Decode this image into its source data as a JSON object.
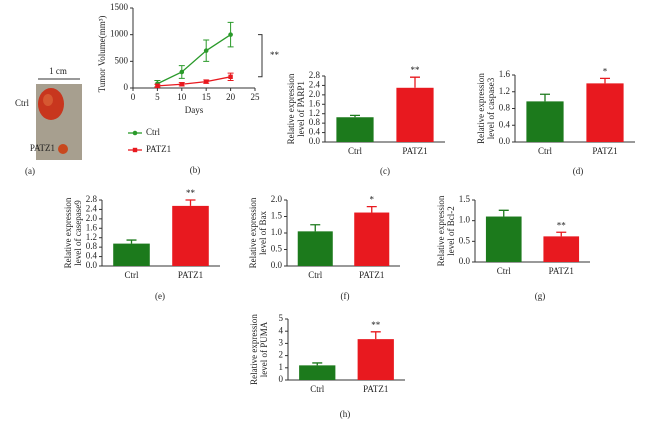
{
  "photo": {
    "scale_label": "1 cm",
    "labels": [
      "Ctrl",
      "PATZ1"
    ],
    "panel": "(a)"
  },
  "chart_data": [
    {
      "type": "line",
      "panel": "(b)",
      "ylabel": "Tumor Volume(mm³)",
      "xlabel": "Days",
      "x": [
        5,
        10,
        15,
        20
      ],
      "xlim": [
        0,
        25
      ],
      "xticks": [
        0,
        5,
        10,
        15,
        20,
        25
      ],
      "ylim": [
        0,
        1500
      ],
      "yticks": [
        0,
        500,
        1000,
        1500
      ],
      "annotation": "**",
      "series": [
        {
          "name": "Ctrl",
          "color": "#2a9a2a",
          "marker": "circle",
          "values": [
            80,
            300,
            700,
            1000
          ],
          "errors": [
            60,
            120,
            200,
            230
          ]
        },
        {
          "name": "PATZ1",
          "color": "#e8191f",
          "marker": "square",
          "values": [
            40,
            70,
            120,
            210
          ],
          "errors": [
            30,
            30,
            30,
            70
          ]
        }
      ]
    },
    {
      "type": "bar",
      "panel": "(c)",
      "ylabel": [
        "Relative expression",
        "level of PARP1"
      ],
      "categories": [
        "Ctrl",
        "PATZ1"
      ],
      "values": [
        1.05,
        2.3
      ],
      "errors": [
        0.08,
        0.45
      ],
      "colors": [
        "#1c7a1c",
        "#e8191f"
      ],
      "value_annotations": [
        null,
        "**"
      ],
      "ylim": [
        0,
        2.8
      ],
      "yticks": [
        {
          "value": 0,
          "label": "0.0"
        },
        0.4,
        0.8,
        1.2,
        1.6,
        {
          "value": 2,
          "label": "2.0"
        },
        2.4,
        2.8
      ]
    },
    {
      "type": "bar",
      "panel": "(d)",
      "ylabel": [
        "Relative expression",
        "level of caspase3"
      ],
      "categories": [
        "Ctrl",
        "PATZ1"
      ],
      "values": [
        0.97,
        1.4
      ],
      "errors": [
        0.17,
        0.12
      ],
      "colors": [
        "#1c7a1c",
        "#e8191f"
      ],
      "value_annotations": [
        null,
        "*"
      ],
      "ylim": [
        0,
        1.6
      ],
      "yticks": [
        {
          "value": 0,
          "label": "0.0"
        },
        0.4,
        0.8,
        1.2,
        1.6
      ]
    },
    {
      "type": "bar",
      "panel": "(e)",
      "ylabel": [
        "Relative expression",
        "level of casepase9"
      ],
      "categories": [
        "Ctrl",
        "PATZ1"
      ],
      "values": [
        0.95,
        2.55
      ],
      "errors": [
        0.15,
        0.25
      ],
      "colors": [
        "#1c7a1c",
        "#e8191f"
      ],
      "value_annotations": [
        null,
        "**"
      ],
      "ylim": [
        0,
        2.8
      ],
      "yticks": [
        {
          "value": 0,
          "label": "0.0"
        },
        0.4,
        0.8,
        1.2,
        1.6,
        {
          "value": 2,
          "label": "2.0"
        },
        2.4,
        2.8
      ]
    },
    {
      "type": "bar",
      "panel": "(f)",
      "ylabel": [
        "Relative expression",
        "level of Bax"
      ],
      "categories": [
        "Ctrl",
        "PATZ1"
      ],
      "values": [
        1.05,
        1.62
      ],
      "errors": [
        0.2,
        0.18
      ],
      "colors": [
        "#1c7a1c",
        "#e8191f"
      ],
      "value_annotations": [
        null,
        "*"
      ],
      "ylim": [
        0,
        2
      ],
      "yticks": [
        {
          "value": 0,
          "label": "0.0"
        },
        0.5,
        {
          "value": 1,
          "label": "1.0"
        },
        1.5,
        {
          "value": 2,
          "label": "2.0"
        }
      ]
    },
    {
      "type": "bar",
      "panel": "(g)",
      "ylabel": [
        "Relative expression",
        "level of Bcl-2"
      ],
      "categories": [
        "Ctrl",
        "PATZ1"
      ],
      "values": [
        1.1,
        0.62
      ],
      "errors": [
        0.15,
        0.1
      ],
      "colors": [
        "#1c7a1c",
        "#e8191f"
      ],
      "value_annotations": [
        null,
        "**"
      ],
      "ylim": [
        0,
        1.5
      ],
      "yticks": [
        {
          "value": 0,
          "label": "0.0"
        },
        0.5,
        {
          "value": 1,
          "label": "1.0"
        },
        1.5
      ]
    },
    {
      "type": "bar",
      "panel": "(h)",
      "ylabel": [
        "Relative expression",
        "level of PUMA"
      ],
      "categories": [
        "Ctrl",
        "PATZ1"
      ],
      "values": [
        1.2,
        3.35
      ],
      "errors": [
        0.2,
        0.6
      ],
      "colors": [
        "#1c7a1c",
        "#e8191f"
      ],
      "value_annotations": [
        null,
        "**"
      ],
      "ylim": [
        0,
        5
      ],
      "yticks": [
        0,
        1,
        2,
        3,
        4,
        5
      ]
    }
  ]
}
